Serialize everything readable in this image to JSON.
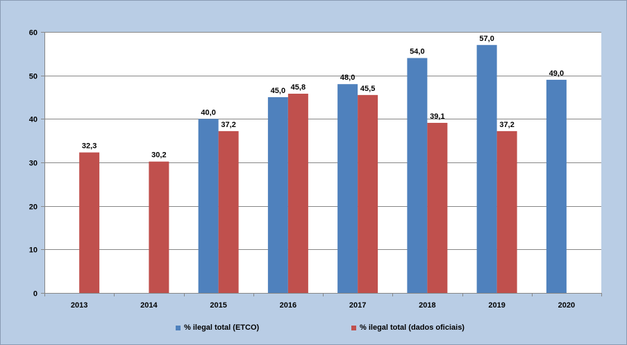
{
  "chart_data": {
    "type": "bar",
    "categories": [
      "2013",
      "2014",
      "2015",
      "2016",
      "2017",
      "2018",
      "2019",
      "2020"
    ],
    "series": [
      {
        "name": "% ilegal total (ETCO)",
        "color": "#4f81bd",
        "values": [
          null,
          null,
          40.0,
          45.0,
          48.0,
          54.0,
          57.0,
          49.0
        ],
        "labels": [
          "",
          "",
          "40,0",
          "45,0",
          "48,0",
          "54,0",
          "57,0",
          "49,0"
        ]
      },
      {
        "name": "% ilegal total (dados oficiais)",
        "color": "#c0504d",
        "values": [
          32.3,
          30.2,
          37.2,
          45.8,
          45.5,
          39.1,
          37.2,
          null
        ],
        "labels": [
          "32,3",
          "30,2",
          "37,2",
          "45,8",
          "45,5",
          "39,1",
          "37,2",
          ""
        ]
      }
    ],
    "ylim": [
      0,
      60
    ],
    "yticks": [
      0,
      10,
      20,
      30,
      40,
      50,
      60
    ],
    "title": "",
    "xlabel": "",
    "ylabel": "",
    "grid": true,
    "legend_position": "bottom",
    "background": "#b9cde5",
    "plot_background": "#ffffff"
  }
}
